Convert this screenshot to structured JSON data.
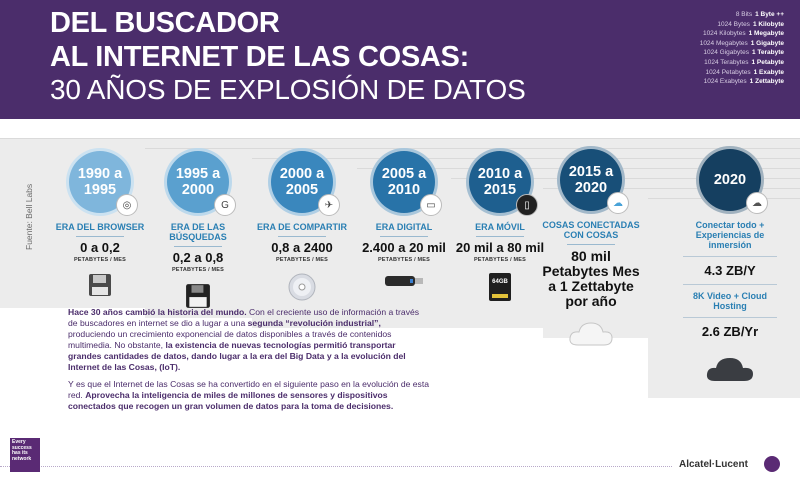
{
  "header": {
    "line1": "DEL BUSCADOR",
    "line2": "AL INTERNET DE LAS COSAS:",
    "line3": "30 AÑOS DE EXPLOSIÓN DE DATOS",
    "units": [
      {
        "from": "8 Bits",
        "to": "1 Byte ++"
      },
      {
        "from": "1024 Bytes",
        "to": "1 Kilobyte"
      },
      {
        "from": "1024 Kilobytes",
        "to": "1 Megabyte"
      },
      {
        "from": "1024 Megabytes",
        "to": "1 Gigabyte"
      },
      {
        "from": "1024 Gigabytes",
        "to": "1 Terabyte"
      },
      {
        "from": "1024 Terabytes",
        "to": "1 Petabyte"
      },
      {
        "from": "1024 Petabytes",
        "to": "1 Exabyte"
      },
      {
        "from": "1024 Exabytes",
        "to": "1 Zettabyte"
      }
    ]
  },
  "source": "Fuente: Bell Labs",
  "eras": [
    {
      "years": "1990 a 1995",
      "era": "ERA DEL BROWSER",
      "value": "0 a 0,2",
      "unit": "PETABYTES / MES",
      "color": "#7fb6dc",
      "icon": "floppy-icon"
    },
    {
      "years": "1995 a 2000",
      "era": "ERA DE LAS BÚSQUEDAS",
      "value": "0,2 a 0,8",
      "unit": "PETABYTES / MES",
      "color": "#5aa0cf",
      "icon": "floppy-icon"
    },
    {
      "years": "2000 a 2005",
      "era": "ERA DE COMPARTIR",
      "value": "0,8 a 2400",
      "unit": "PETABYTES / MES",
      "color": "#3a87bd",
      "icon": "cd-icon"
    },
    {
      "years": "2005 a 2010",
      "era": "ERA DIGITAL",
      "value": "2.400 a 20 mil",
      "unit": "PETABYTES / MES",
      "color": "#2873a8",
      "icon": "usb-icon"
    },
    {
      "years": "2010 a 2015",
      "era": "ERA MÓVIL",
      "value": "20 mil a 80 mil",
      "unit": "PETABYTES / MES",
      "color": "#1e5f8f",
      "icon": "sdcard-icon"
    },
    {
      "years": "2015 a 2020",
      "era": "COSAS CONECTADAS CON COSAS",
      "value": "80 mil Petabytes Mes a 1 Zettabyte por año",
      "unit": "",
      "color": "#184f78",
      "icon": "cloud-icon"
    }
  ],
  "sd_label": "64GB",
  "year2020": {
    "years": "2020",
    "color": "#153f60",
    "item1": "Conectar todo + Experiencias de inmersión",
    "value1": "4.3 ZB/Y",
    "item2": "8K Video + Cloud Hosting",
    "value2": "2.6 ZB/Yr"
  },
  "body": {
    "p1_bold": "Hace 30 años cambió la historia del mundo.",
    "p1_a": " Con el creciente uso de información a través de buscadores en internet se dio a lugar a una ",
    "p1_bold2": "segunda “revolución industrial”,",
    "p1_b": " produciendo un crecimiento exponencial de datos disponibles a través de contenidos multimedia. No obstante, ",
    "p1_bold3": "la existencia de nuevas tecnologías permitió transportar grandes cantidades de datos, dando lugar a la era del Big Data y a la evolución del Internet de las Cosas, (IoT).",
    "p2_a": "Y es que el Internet de las Cosas se ha convertido en el siguiente paso en la evolución de esta red. ",
    "p2_bold": "Aprovecha la inteligencia de miles de millones de sensores y dispositivos conectados que recogen un gran volumen de datos para la toma de decisiones."
  },
  "footer": {
    "tag": "Every success has its network",
    "brand": "Alcatel·Lucent"
  }
}
